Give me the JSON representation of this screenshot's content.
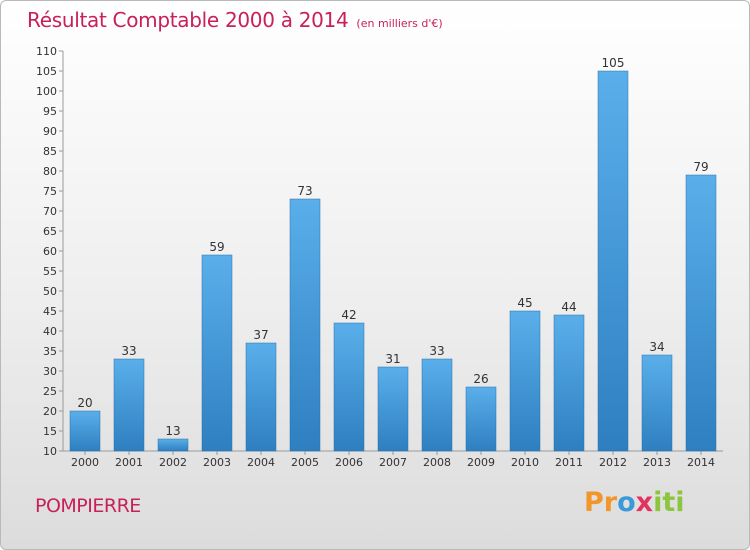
{
  "header": {
    "title": "Résultat Comptable 2000 à 2014",
    "unit": "(en milliers d'€)"
  },
  "footer": {
    "commune": "POMPIERRE",
    "logo": {
      "p1": "Pr",
      "p2": "o",
      "p3": "x",
      "p4": "iti"
    }
  },
  "colors": {
    "bar": "#4e9fdf",
    "title": "#c8205a"
  },
  "chart_data": {
    "type": "bar",
    "title": "Résultat Comptable 2000 à 2014",
    "subtitle": "(en milliers d'€)",
    "xlabel": "",
    "ylabel": "",
    "categories": [
      "2000",
      "2001",
      "2002",
      "2003",
      "2004",
      "2005",
      "2006",
      "2007",
      "2008",
      "2009",
      "2010",
      "2011",
      "2012",
      "2013",
      "2014"
    ],
    "values": [
      20,
      33,
      13,
      59,
      37,
      73,
      42,
      31,
      33,
      26,
      45,
      44,
      105,
      34,
      79
    ],
    "ylim": [
      10,
      110
    ],
    "yticks": [
      10,
      15,
      20,
      25,
      30,
      35,
      40,
      45,
      50,
      55,
      60,
      65,
      70,
      75,
      80,
      85,
      90,
      95,
      100,
      105,
      110
    ],
    "grid": false,
    "data_labels": true
  }
}
